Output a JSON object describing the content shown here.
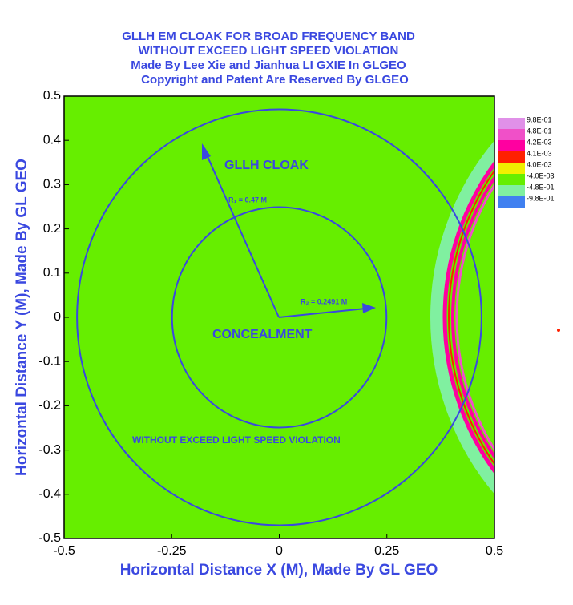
{
  "chart_data": {
    "type": "field",
    "title": [
      "GLLH EM CLOAK FOR BROAD FREQUENCY BAND",
      "WITHOUT EXCEED LIGHT SPEED VIOLATION",
      "Made By Lee Xie and Jianhua LI GXIE In GLGEO",
      "Copyright and Patent Are Reserved By GLGEO"
    ],
    "xlabel": "Horizontal Distance X (M), Made By GL GEO",
    "ylabel": "Horizontal Distance Y (M), Made By GL GEO",
    "xlim": [
      -0.5,
      0.5
    ],
    "ylim": [
      -0.5,
      0.5
    ],
    "xticks": [
      -0.5,
      -0.25,
      0,
      0.25,
      0.5
    ],
    "yticks": [
      -0.5,
      -0.4,
      -0.3,
      -0.2,
      -0.1,
      0,
      0.1,
      0.2,
      0.3,
      0.4,
      0.5
    ],
    "background": "#66ee00",
    "circles": [
      {
        "label": "R₁ = 0.47 M",
        "r": 0.47,
        "color": "#3a48e0"
      },
      {
        "label": "R₂ = 0.2491 M",
        "r": 0.2491,
        "color": "#3a48e0"
      }
    ],
    "annotations": [
      "GLLH CLOAK",
      "CONCEALMENT",
      "WITHOUT EXCEED LIGHT SPEED VIOLATION"
    ],
    "legend": [
      {
        "label": "9.8E-01",
        "color": "#e090e8"
      },
      {
        "label": "4.8E-01",
        "color": "#f050c8"
      },
      {
        "label": "4.2E-03",
        "color": "#ff00a0"
      },
      {
        "label": "4.1E-03",
        "color": "#ff2000"
      },
      {
        "label": "4.0E-03",
        "color": "#f0f000"
      },
      {
        "label": "-4.0E-03",
        "color": "#66ee00"
      },
      {
        "label": "-4.8E-01",
        "color": "#80f0a0"
      },
      {
        "label": "-9.8E-01",
        "color": "#4080f0"
      }
    ]
  }
}
